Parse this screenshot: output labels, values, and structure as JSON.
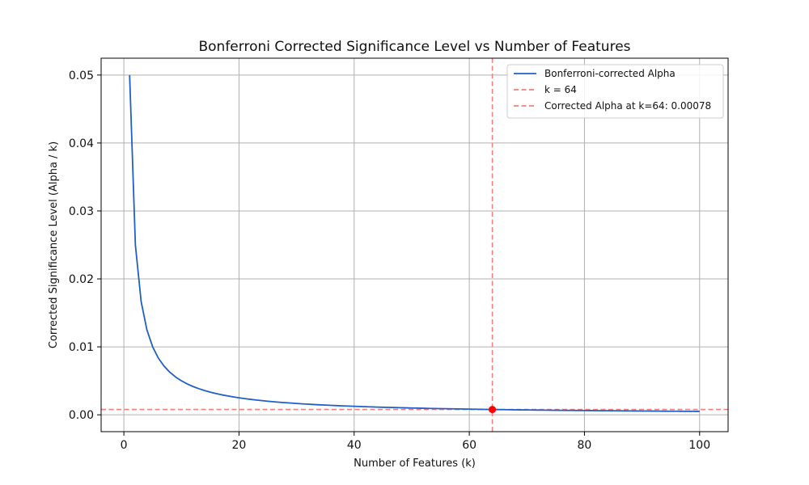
{
  "chart_data": {
    "type": "line",
    "title": "Bonferroni Corrected Significance Level vs Number of Features",
    "xlabel": "Number of Features (k)",
    "ylabel": "Corrected Significance Level (Alpha / k)",
    "xlim": [
      -3.95,
      104.95
    ],
    "ylim": [
      -0.00248,
      0.05248
    ],
    "x_ticks": [
      0,
      20,
      40,
      60,
      80,
      100
    ],
    "x_tick_labels": [
      "0",
      "20",
      "40",
      "60",
      "80",
      "100"
    ],
    "y_ticks": [
      0.0,
      0.01,
      0.02,
      0.03,
      0.04,
      0.05
    ],
    "y_tick_labels": [
      "0.00",
      "0.01",
      "0.02",
      "0.03",
      "0.04",
      "0.05"
    ],
    "grid": true,
    "legend_position": "top-right",
    "alpha": 0.05,
    "k_range": [
      1,
      100
    ],
    "series": [
      {
        "name": "Bonferroni-corrected Alpha",
        "formula": "alpha / k",
        "color": "#1f5fc8"
      }
    ],
    "reference_lines": [
      {
        "name": "k = 64",
        "orientation": "vertical",
        "value": 64,
        "color": "#f47f7f",
        "style": "dashed"
      },
      {
        "name": "Corrected Alpha at k=64: 0.00078",
        "orientation": "horizontal",
        "value": 0.00078,
        "color": "#f47f7f",
        "style": "dashed"
      }
    ],
    "highlight_point": {
      "x": 64,
      "y": 0.00078,
      "color": "#ff0000"
    }
  }
}
